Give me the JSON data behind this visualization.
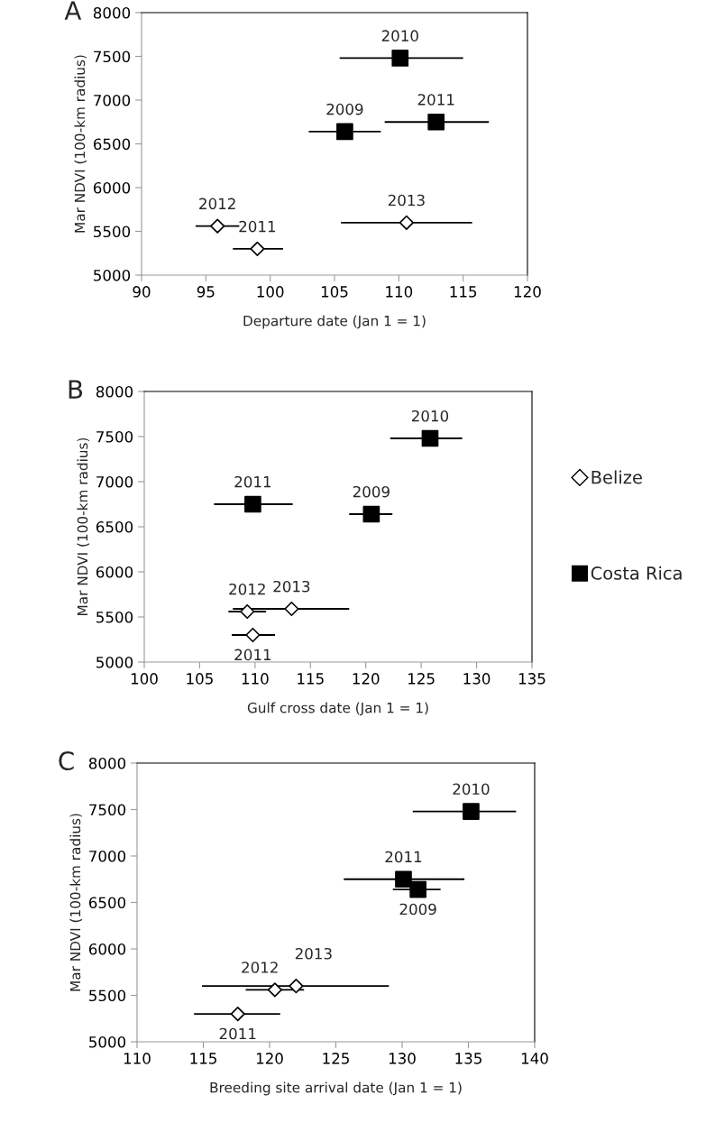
{
  "chart_data": [
    {
      "type": "scatter",
      "title": "A",
      "xlabel": "Departure date (Jan 1 = 1)",
      "ylabel": "Mar NDVI (100-km radius)",
      "xlim": [
        90,
        120
      ],
      "xticks": [
        90,
        95,
        100,
        105,
        110,
        115,
        120
      ],
      "ylim": [
        5000,
        8000
      ],
      "yticks": [
        5000,
        5500,
        6000,
        6500,
        7000,
        7500,
        8000
      ],
      "grid": false,
      "legend": false,
      "series": [
        {
          "color": "#ffffff",
          "marker": "diamond",
          "x": [
            95.9,
            99.0,
            110.6
          ],
          "values": [
            5560,
            5300,
            5600
          ],
          "xerrors": [
            [
              94.2,
              97.6
            ],
            [
              97.1,
              101.0
            ],
            [
              105.5,
              115.7
            ]
          ]
        },
        {
          "color": "#000000",
          "marker": "square",
          "x": [
            105.8,
            110.1,
            112.9
          ],
          "values": [
            6640,
            7480,
            6750
          ],
          "xerrors": [
            [
              103.0,
              108.6
            ],
            [
              105.4,
              115.0
            ],
            [
              108.9,
              117.0
            ]
          ]
        }
      ],
      "annotations": [
        {
          "text": "2012",
          "x": 95.9,
          "y": 5560
        },
        {
          "text": "2011",
          "x": 99.0,
          "y": 5300
        },
        {
          "text": "2013",
          "x": 110.6,
          "y": 5600
        },
        {
          "text": "2009",
          "x": 105.8,
          "y": 6640
        },
        {
          "text": "2010",
          "x": 110.1,
          "y": 7480
        },
        {
          "text": "2011",
          "x": 112.9,
          "y": 6750
        }
      ]
    },
    {
      "type": "scatter",
      "title": "B",
      "xlabel": "Gulf cross date (Jan 1 = 1)",
      "ylabel": "Mar NDVI (100-km radius)",
      "xlim": [
        100,
        135
      ],
      "xticks": [
        100,
        105,
        110,
        115,
        120,
        125,
        130,
        135
      ],
      "ylim": [
        5000,
        8000
      ],
      "yticks": [
        5000,
        5500,
        6000,
        6500,
        7000,
        7500,
        8000
      ],
      "grid": false,
      "legend": "right",
      "series": [
        {
          "name": "Belize",
          "color": "#ffffff",
          "marker": "diamond",
          "x": [
            109.3,
            109.8,
            113.3
          ],
          "values": [
            5560,
            5300,
            5590
          ],
          "xerrors": [
            [
              107.6,
              111.0
            ],
            [
              107.9,
              111.8
            ],
            [
              108.0,
              118.5
            ]
          ]
        },
        {
          "name": "Costa Rica",
          "color": "#000000",
          "marker": "square",
          "x": [
            109.8,
            120.5,
            125.8
          ],
          "values": [
            6750,
            6640,
            7480
          ],
          "xerrors": [
            [
              106.3,
              113.4
            ],
            [
              118.5,
              122.4
            ],
            [
              122.2,
              128.7
            ]
          ]
        }
      ],
      "annotations": [
        {
          "text": "2012",
          "x": 109.3,
          "y": 5560
        },
        {
          "text": "2011",
          "x": 109.8,
          "y": 5300
        },
        {
          "text": "2013",
          "x": 113.3,
          "y": 5590
        },
        {
          "text": "2011",
          "x": 109.8,
          "y": 6750
        },
        {
          "text": "2009",
          "x": 120.5,
          "y": 6640
        },
        {
          "text": "2010",
          "x": 125.8,
          "y": 7480
        }
      ]
    },
    {
      "type": "scatter",
      "title": "C",
      "xlabel": "Breeding site arrival date (Jan 1 = 1)",
      "ylabel": "Mar NDVI (100-km radius)",
      "xlim": [
        110,
        140
      ],
      "xticks": [
        110,
        115,
        120,
        125,
        130,
        135,
        140
      ],
      "ylim": [
        5000,
        8000
      ],
      "yticks": [
        5000,
        5500,
        6000,
        6500,
        7000,
        7500,
        8000
      ],
      "grid": false,
      "legend": false,
      "series": [
        {
          "color": "#ffffff",
          "marker": "diamond",
          "x": [
            117.6,
            120.4,
            122.0
          ],
          "values": [
            5300,
            5560,
            5600
          ],
          "xerrors": [
            [
              114.3,
              120.8
            ],
            [
              118.2,
              122.6
            ],
            [
              114.9,
              129.0
            ]
          ]
        },
        {
          "color": "#000000",
          "marker": "square",
          "x": [
            130.1,
            131.2,
            135.2
          ],
          "values": [
            6750,
            6640,
            7480
          ],
          "xerrors": [
            [
              125.6,
              134.7
            ],
            [
              129.3,
              132.9
            ],
            [
              130.8,
              138.6
            ]
          ]
        }
      ],
      "annotations": [
        {
          "text": "2011",
          "x": 117.6,
          "y": 5300
        },
        {
          "text": "2012",
          "x": 120.4,
          "y": 5560
        },
        {
          "text": "2013",
          "x": 122.0,
          "y": 5600
        },
        {
          "text": "2011",
          "x": 130.1,
          "y": 6750
        },
        {
          "text": "2009",
          "x": 131.2,
          "y": 6640
        },
        {
          "text": "2010",
          "x": 135.2,
          "y": 7480
        }
      ]
    }
  ]
}
